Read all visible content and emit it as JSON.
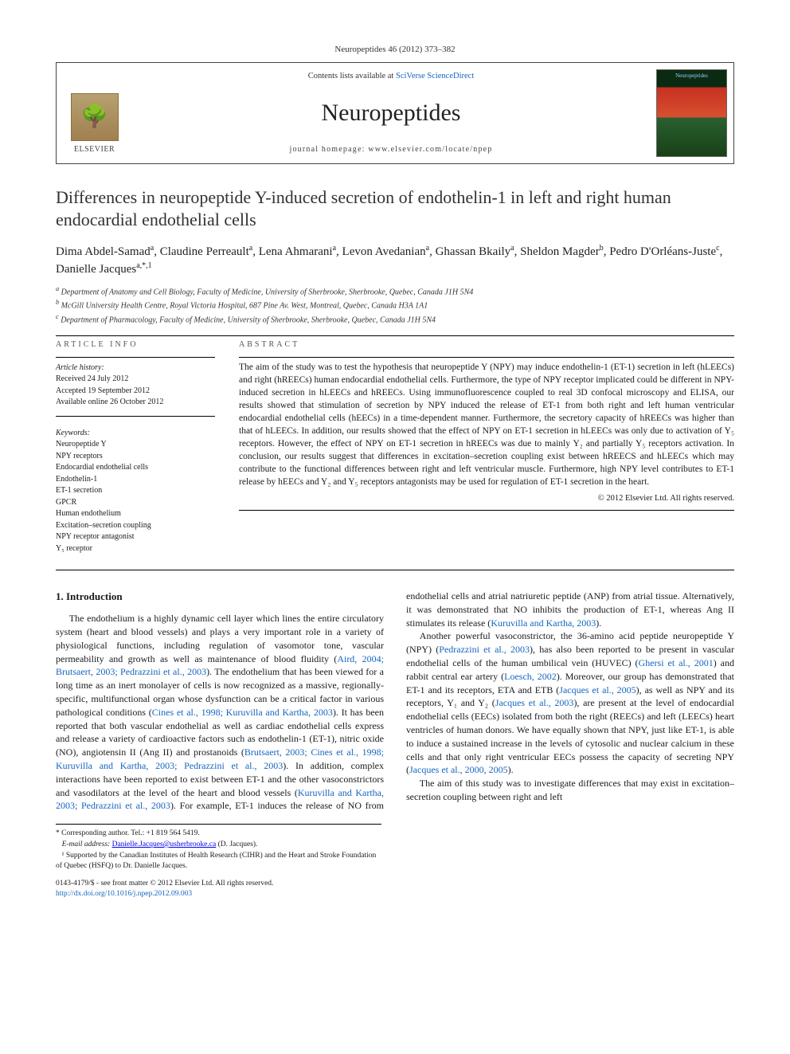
{
  "citation": "Neuropeptides 46 (2012) 373–382",
  "header": {
    "contents_prefix": "Contents lists available at ",
    "contents_link": "SciVerse ScienceDirect",
    "journal": "Neuropeptides",
    "homepage": "journal homepage: www.elsevier.com/locate/npep",
    "publisher": "ELSEVIER"
  },
  "title": "Differences in neuropeptide Y-induced secretion of endothelin-1 in left and right human endocardial endothelial cells",
  "authors_html": "Dima Abdel-Samad<sup>a</sup>, Claudine Perreault<sup>a</sup>, Lena Ahmarani<sup>a</sup>, Levon Avedanian<sup>a</sup>, Ghassan Bkaily<sup>a</sup>, Sheldon Magder<sup>b</sup>, Pedro D'Orléans-Juste<sup>c</sup>, Danielle Jacques<sup>a,*,1</sup>",
  "affiliations": [
    "a Department of Anatomy and Cell Biology, Faculty of Medicine, University of Sherbrooke, Sherbrooke, Quebec, Canada J1H 5N4",
    "b McGill University Health Centre, Royal Victoria Hospital, 687 Pine Av. West, Montreal, Quebec, Canada H3A 1A1",
    "c Department of Pharmacology, Faculty of Medicine, University of Sherbrooke, Sherbrooke, Quebec, Canada J1H 5N4"
  ],
  "article_info": {
    "heading": "ARTICLE INFO",
    "history_label": "Article history:",
    "history": [
      "Received 24 July 2012",
      "Accepted 19 September 2012",
      "Available online 26 October 2012"
    ],
    "keywords_label": "Keywords:",
    "keywords": [
      "Neuropeptide Y",
      "NPY receptors",
      "Endocardial endothelial cells",
      "Endothelin-1",
      "ET-1 secretion",
      "GPCR",
      "Human endothelium",
      "Excitation–secretion coupling",
      "NPY receptor antagonist",
      "Y₅ receptor"
    ]
  },
  "abstract": {
    "heading": "ABSTRACT",
    "text": "The aim of the study was to test the hypothesis that neuropeptide Y (NPY) may induce endothelin-1 (ET-1) secretion in left (hLEECs) and right (hREECs) human endocardial endothelial cells. Furthermore, the type of NPY receptor implicated could be different in NPY-induced secretion in hLEECs and hREECs. Using immunofluorescence coupled to real 3D confocal microscopy and ELISA, our results showed that stimulation of secretion by NPY induced the release of ET-1 from both right and left human ventricular endocardial endothelial cells (hEECs) in a time-dependent manner. Furthermore, the secretory capacity of hREECs was higher than that of hLEECs. In addition, our results showed that the effect of NPY on ET-1 secretion in hLEECs was only due to activation of Y₅ receptors. However, the effect of NPY on ET-1 secretion in hREECs was due to mainly Y₂ and partially Y₅ receptors activation. In conclusion, our results suggest that differences in excitation–secretion coupling exist between hREECS and hLEECs which may contribute to the functional differences between right and left ventricular muscle. Furthermore, high NPY level contributes to ET-1 release by hEECs and Y₂ and Y₅ receptors antagonists may be used for regulation of ET-1 secretion in the heart.",
    "copyright": "© 2012 Elsevier Ltd. All rights reserved."
  },
  "intro": {
    "heading": "1. Introduction",
    "p1_pre": "The endothelium is a highly dynamic cell layer which lines the entire circulatory system (heart and blood vessels) and plays a very important role in a variety of physiological functions, including regulation of vasomotor tone, vascular permeability and growth as well as maintenance of blood fluidity (",
    "p1_ref1": "Aird, 2004; Brutsaert, 2003; Pedrazzini et al., 2003",
    "p1_mid1": "). The endothelium that has been viewed for a long time as an inert monolayer of cells is now recognized as a massive, regionally-specific, multifunctional organ whose dysfunction can be a critical factor in various pathological conditions (",
    "p1_ref2": "Cines et al., 1998; Kuruvilla and Kartha, 2003",
    "p1_mid2": "). It has been reported that both vascular endothelial as well as cardiac endothelial cells express and release a variety of cardioactive factors such as endothelin-1 (ET-1), nitric oxide (NO), angiotensin II (Ang II) and prostanoids (",
    "p1_ref3": "Brutsaert, 2003; Cines et al., 1998; Kuruvilla and Kartha, 2003; Pedrazzini et al., 2003",
    "p1_mid3": "). In addition, complex interactions have been reported to exist between ET-1 and the other vasoconstrictors and vasodilators at the level of the heart and blood vessels (",
    "p1_ref4": "Kuruvilla and Kartha, 2003; Pedrazzini et al., 2003",
    "p1_mid4": "). For example, ET-1 induces the release of NO from endothelial cells and atrial natriuretic peptide (ANP) from atrial tissue. Alternatively, it was demonstrated that NO inhibits the production of ET-1, whereas Ang II stimulates its release (",
    "p1_ref5": "Kuruvilla and Kartha, 2003",
    "p1_end": ").",
    "p2_pre": "Another powerful vasoconstrictor, the 36-amino acid peptide neuropeptide Y (NPY) (",
    "p2_ref1": "Pedrazzini et al., 2003",
    "p2_mid1": "), has also been reported to be present in vascular endothelial cells of the human umbilical vein (HUVEC) (",
    "p2_ref2": "Ghersi et al., 2001",
    "p2_mid2": ") and rabbit central ear artery (",
    "p2_ref3": "Loesch, 2002",
    "p2_mid3": "). Moreover, our group has demonstrated that ET-1 and its receptors, ETA and ETB (",
    "p2_ref4": "Jacques et al., 2005",
    "p2_mid4": "), as well as NPY and its receptors, Y₁ and Y₂ (",
    "p2_ref5": "Jacques et al., 2003",
    "p2_mid5": "), are present at the level of endocardial endothelial cells (EECs) isolated from both the right (REECs) and left (LEECs) heart ventricles of human donors. We have equally shown that NPY, just like ET-1, is able to induce a sustained increase in the levels of cytosolic and nuclear calcium in these cells and that only right ventricular EECs possess the capacity of secreting NPY (",
    "p2_ref6": "Jacques et al., 2000, 2005",
    "p2_end": ").",
    "p3": "The aim of this study was to investigate differences that may exist in excitation–secretion coupling between right and left"
  },
  "footnotes": {
    "corr": "* Corresponding author. Tel.: +1 819 564 5419.",
    "email_label": "E-mail address:",
    "email": "Danielle.Jacques@usherbrooke.ca",
    "email_suffix": "(D. Jacques).",
    "support": "¹ Supported by the Canadian Institutes of Health Research (CIHR) and the Heart and Stroke Foundation of Quebec (HSFQ) to Dr. Danielle Jacques."
  },
  "footer": {
    "left1": "0143-4179/$ - see front matter © 2012 Elsevier Ltd. All rights reserved.",
    "left2": "http://dx.doi.org/10.1016/j.npep.2012.09.003"
  },
  "colors": {
    "link": "#1565c0",
    "text": "#1a1a1a",
    "rule": "#000000"
  }
}
